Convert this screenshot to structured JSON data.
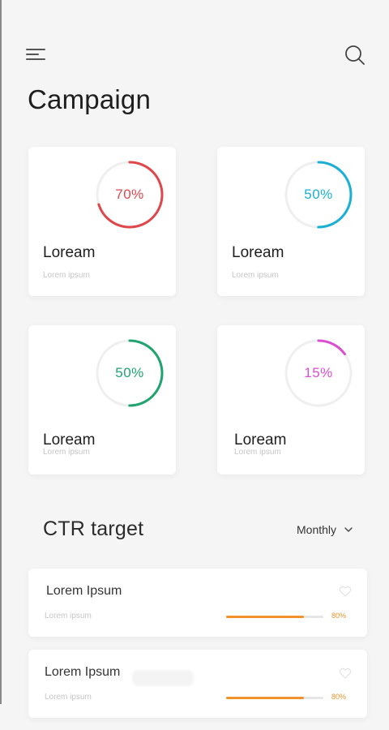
{
  "header": {
    "title": "Campaign"
  },
  "cards": [
    {
      "percent_label": "70%",
      "percent": 70,
      "color": "#e0474c",
      "title": "Loream",
      "subtitle": "Lorem ipsum"
    },
    {
      "percent_label": "50%",
      "percent": 50,
      "color": "#1ab0d6",
      "title": "Loream",
      "subtitle": "Lorem ipsum"
    },
    {
      "percent_label": "50%",
      "percent": 50,
      "color": "#1fa46e",
      "title": "Loream",
      "subtitle": "Lorem ipsum"
    },
    {
      "percent_label": "15%",
      "percent": 15,
      "color": "#d94fcf",
      "title": "Loream",
      "subtitle": "Lorem ipsum"
    }
  ],
  "ctr": {
    "title": "CTR target",
    "period": "Monthly",
    "items": [
      {
        "title": "Lorem Ipsum",
        "subtitle": "Lorem ipsum",
        "progress": 0.8,
        "progress_label": "80%",
        "color": "#f1922c"
      },
      {
        "title": "Lorem Ipsum",
        "subtitle": "Lorem ipsum",
        "progress": 0.8,
        "progress_label": "80%",
        "color": "#f1922c"
      }
    ]
  },
  "icons": {
    "menu": "menu-icon",
    "search": "search-icon",
    "heart": "heart-icon",
    "chevron": "chevron-down-icon"
  }
}
